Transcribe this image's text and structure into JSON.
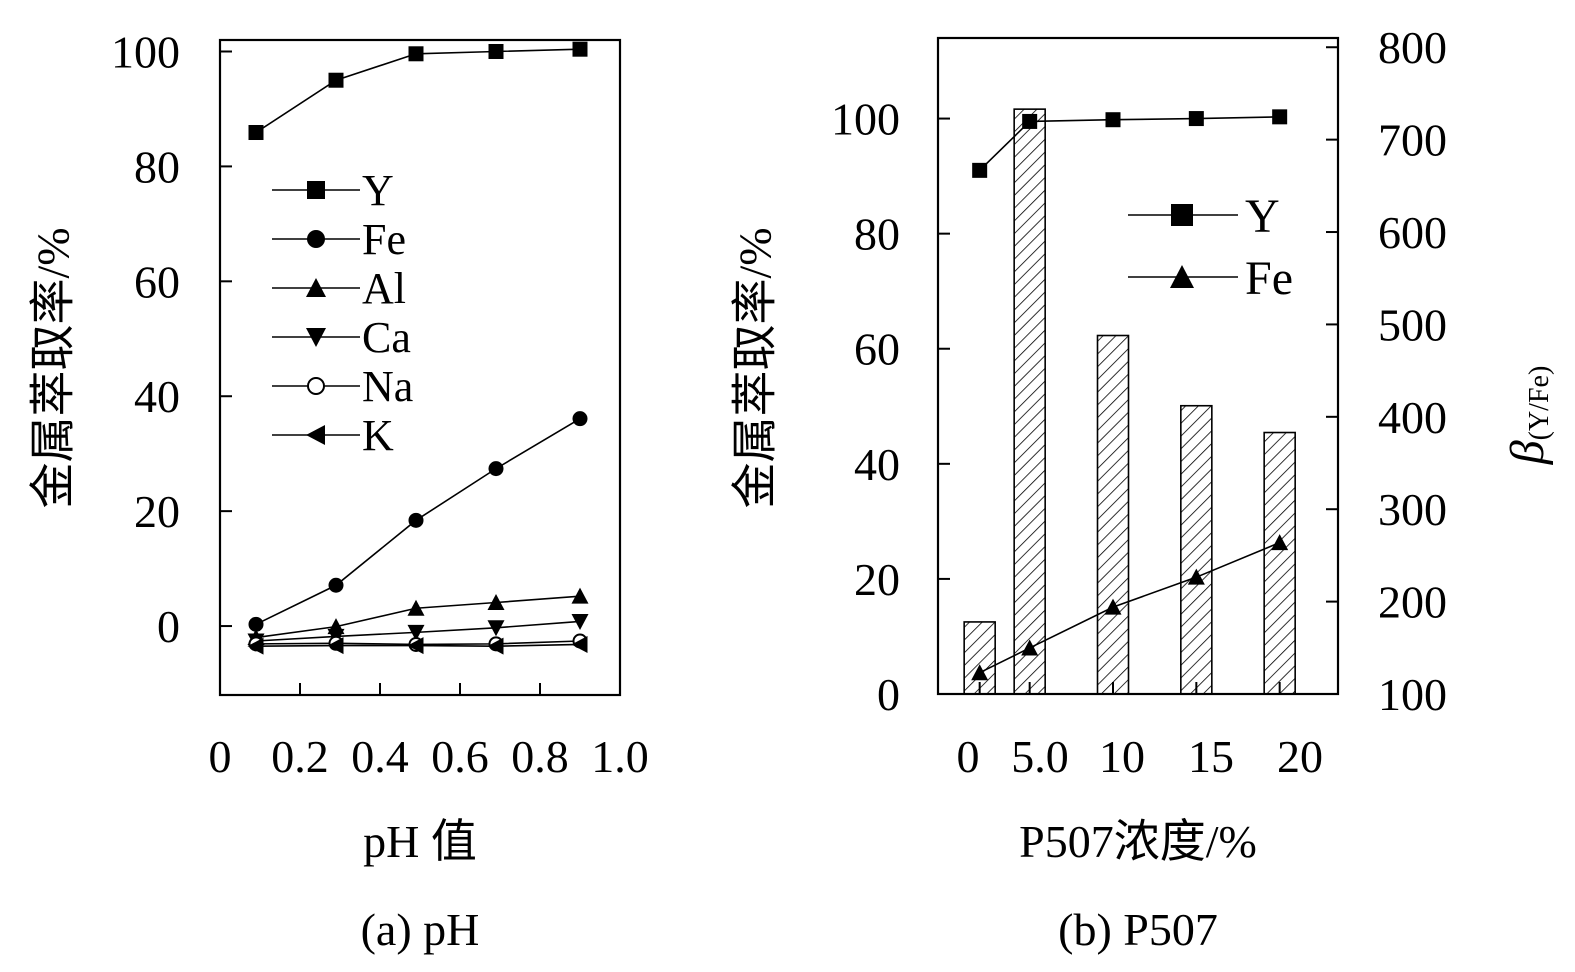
{
  "chart_data": [
    {
      "type": "line",
      "caption": "(a) pH",
      "xlabel": "pH 值",
      "ylabel": "金属萃取率/%",
      "xlim": [
        0,
        1.0
      ],
      "ylim": [
        -12,
        102
      ],
      "xticks": [
        0,
        0.2,
        0.4,
        0.6,
        0.8,
        1.0
      ],
      "xtick_labels": [
        "0",
        "0.2",
        "0.4",
        "0.6",
        "0.8",
        "1.0"
      ],
      "yticks": [
        0,
        20,
        40,
        60,
        80,
        100
      ],
      "ytick_labels": [
        "0",
        "20",
        "40",
        "60",
        "80",
        "100"
      ],
      "legend_position": "center-left",
      "x": [
        0.09,
        0.29,
        0.49,
        0.69,
        0.9
      ],
      "series": [
        {
          "name": "Y",
          "marker": "square-filled",
          "values": [
            85.9,
            95.0,
            99.6,
            100.0,
            100.4
          ]
        },
        {
          "name": "Fe",
          "marker": "circle-filled",
          "values": [
            0.3,
            7.1,
            18.4,
            27.4,
            36.1
          ]
        },
        {
          "name": "Al",
          "marker": "triangle-up-filled",
          "values": [
            -2.0,
            -0.1,
            3.1,
            4.1,
            5.2
          ]
        },
        {
          "name": "Ca",
          "marker": "triangle-down-filled",
          "values": [
            -2.6,
            -1.8,
            -1.1,
            -0.3,
            0.8
          ]
        },
        {
          "name": "Na",
          "marker": "circle-open",
          "values": [
            -3.1,
            -3.0,
            -3.2,
            -3.1,
            -2.6
          ]
        },
        {
          "name": "K",
          "marker": "triangle-left-filled",
          "values": [
            -3.5,
            -3.4,
            -3.4,
            -3.5,
            -3.2
          ]
        }
      ]
    },
    {
      "type": "bar+line",
      "caption": "(b) P507",
      "xlabel": "P507浓度/%",
      "ylabel": "金属萃取率/%",
      "y2label": "β",
      "y2label_sub": "(Y/Fe)",
      "xlim": [
        -1.5,
        22.5
      ],
      "ylim": [
        0,
        114
      ],
      "y2lim": [
        100,
        810
      ],
      "xticks": [
        0,
        5.0,
        10,
        15,
        20
      ],
      "xtick_labels": [
        "0",
        "5.0",
        "10",
        "15",
        "20"
      ],
      "yticks": [
        0,
        20,
        40,
        60,
        80,
        100
      ],
      "ytick_labels": [
        "0",
        "20",
        "40",
        "60",
        "80",
        "100"
      ],
      "y2ticks": [
        100,
        200,
        300,
        400,
        500,
        600,
        700,
        800
      ],
      "y2tick_labels": [
        "100",
        "200",
        "300",
        "400",
        "500",
        "600",
        "700",
        "800"
      ],
      "legend_position": "top-right",
      "x": [
        1,
        4,
        9,
        14,
        19
      ],
      "bars": {
        "axis": "right",
        "pattern": "diagonal-hatch",
        "values": [
          178,
          733,
          488,
          412,
          383
        ]
      },
      "series": [
        {
          "name": "Y",
          "marker": "square-filled",
          "axis": "left",
          "values": [
            91.0,
            99.5,
            99.8,
            100.0,
            100.3
          ]
        },
        {
          "name": "Fe",
          "marker": "triangle-up-filled",
          "axis": "left",
          "values": [
            3.7,
            8.0,
            15.1,
            20.3,
            26.3
          ]
        }
      ]
    }
  ]
}
